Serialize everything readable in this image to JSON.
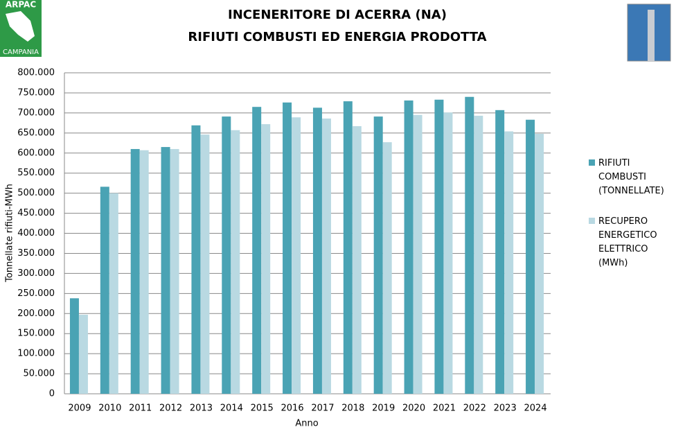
{
  "logo": {
    "top": "ARPAC",
    "bottom": "CAMPANIA"
  },
  "chart_data": {
    "type": "bar",
    "title": "INCENERITORE DI ACERRA (NA)",
    "subtitle": "RIFIUTI COMBUSTI ED ENERGIA PRODOTTA",
    "x_label": "Anno",
    "y_label": "Tonnellate rifiuti-MWh",
    "categories": [
      "2009",
      "2010",
      "2011",
      "2012",
      "2013",
      "2014",
      "2015",
      "2016",
      "2017",
      "2018",
      "2019",
      "2020",
      "2021",
      "2022",
      "2023",
      "2024"
    ],
    "series": [
      {
        "name": "RIFIUTI COMBUSTI (TONNELLATE)",
        "color": "#4aa3b4",
        "values": [
          238000,
          516000,
          610000,
          615000,
          669000,
          691000,
          715000,
          726000,
          713000,
          729000,
          691000,
          731000,
          733000,
          740000,
          707000,
          683000
        ]
      },
      {
        "name": "RECUPERO ENERGETICO ELETTRICO (MWh)",
        "color": "#b9d9e2",
        "values": [
          197000,
          500000,
          607000,
          610000,
          646000,
          657000,
          672000,
          689000,
          686000,
          667000,
          627000,
          695000,
          701000,
          693000,
          654000,
          648000
        ]
      }
    ],
    "ylim": [
      0,
      800000
    ],
    "yticks": [
      0,
      {
        "value": 50000,
        "label": "50.000"
      },
      {
        "value": 100000,
        "label": "100.000"
      },
      {
        "value": 150000,
        "label": "150.000"
      },
      {
        "value": 200000,
        "label": "200.000"
      },
      {
        "value": 250000,
        "label": "250.000"
      },
      {
        "value": 300000,
        "label": "300.000"
      },
      {
        "value": 350000,
        "label": "350.000"
      },
      {
        "value": 400000,
        "label": "400.000"
      },
      {
        "value": 450000,
        "label": "450.000"
      },
      {
        "value": 500000,
        "label": "500.000"
      },
      {
        "value": 550000,
        "label": "550.000"
      },
      {
        "value": 600000,
        "label": "600.000"
      },
      {
        "value": 650000,
        "label": "650.000"
      },
      {
        "value": 700000,
        "label": "700.000"
      },
      {
        "value": 750000,
        "label": "750.000"
      },
      {
        "value": 800000,
        "label": "800.000"
      }
    ],
    "grid": true,
    "legend": "right"
  }
}
